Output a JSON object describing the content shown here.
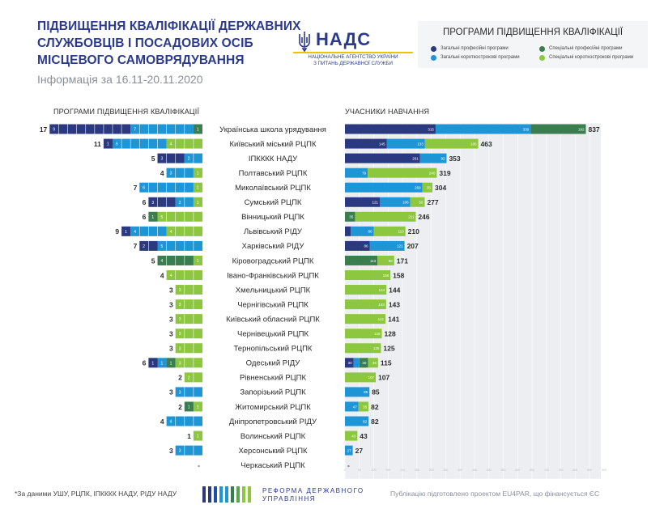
{
  "header": {
    "title_lines": [
      "ПІДВИЩЕННЯ КВАЛІФІКАЦІЇ ДЕРЖАВНИХ",
      "СЛУЖБОВЦІВ І ПОСАДОВИХ ОСІБ",
      "МІСЦЕВОГО САМОВРЯДУВАННЯ"
    ],
    "subtitle": "Інформація за 16.11-20.11.2020"
  },
  "logo": {
    "name": "НАДС",
    "line1": "НАЦІОНАЛЬНЕ АГЕНТСТВО УКРАЇНИ",
    "line2": "З ПИТАНЬ ДЕРЖАВНОЇ СЛУЖБИ",
    "icon": "trident-icon"
  },
  "legend": {
    "title": "ПРОГРАМИ ПІДВИЩЕННЯ КВАЛІФІКАЦІЇ",
    "items": [
      {
        "label": "Загальні професійні програми",
        "color": "#2b3a80"
      },
      {
        "label": "Спеціальні професійні програми",
        "color": "#3a7d4f"
      },
      {
        "label": "Загальні короткострокові програми",
        "color": "#1e96d6"
      },
      {
        "label": "Спеціальні короткострокові програми",
        "color": "#8dc63f"
      }
    ]
  },
  "colors": {
    "general_prof": "#2b3a80",
    "general_short": "#1e96d6",
    "special_prof": "#3a7d4f",
    "special_short": "#8dc63f",
    "track": "#eceef1"
  },
  "sections": {
    "left": "ПРОГРАМИ ПІДВИЩЕННЯ КВАЛІФІКАЦІЇ",
    "right": "УЧАСНИКИ НАВЧАННЯ"
  },
  "chart_data": {
    "type": "bar",
    "series_order": [
      "Загальні професійні програми",
      "Загальні короткострокові програми",
      "Спеціальні професійні програми",
      "Спеціальні короткострокові програми"
    ],
    "categories": [
      "Українська школа урядування",
      "Київський міський РЦПК",
      "ІПКККК НАДУ",
      "Полтавський РЦПК",
      "Миколаївський РЦПК",
      "Сумський РЦПК",
      "Вінницький РЦПК",
      "Львівський РІДУ",
      "Харківський РІДУ",
      "Кіровоградський РЦПК",
      "Івано-Франківський РЦПК",
      "Хмельницький РЦПК",
      "Чернігівський РЦПК",
      "Київський обласний РЦПК",
      "Чернівецький РЦПК",
      "Тернопільський РЦПК",
      "Одеський РІДУ",
      "Рівненський РЦПК",
      "Запорізький РЦПК",
      "Житомирський РЦПК",
      "Дніпропетровський РІДУ",
      "Волинський РЦПК",
      "Херсонський РЦПК",
      "Черкаський РЦПК"
    ],
    "programs": {
      "totals": [
        "17",
        "11",
        "5",
        "4",
        "7",
        "6",
        "6",
        "9",
        "7",
        "5",
        "4",
        "3",
        "3",
        "3",
        "3",
        "3",
        "6",
        "2",
        "3",
        "2",
        "4",
        "1",
        "3",
        "-"
      ],
      "segments": [
        [
          [
            0,
            9
          ],
          [
            1,
            7
          ],
          [
            2,
            1
          ]
        ],
        [
          [
            0,
            1
          ],
          [
            1,
            6
          ],
          [
            3,
            4
          ]
        ],
        [
          [
            0,
            3
          ],
          [
            1,
            2
          ]
        ],
        [
          [
            1,
            3
          ],
          [
            3,
            1
          ]
        ],
        [
          [
            1,
            6
          ],
          [
            3,
            1
          ]
        ],
        [
          [
            0,
            3
          ],
          [
            1,
            2
          ],
          [
            3,
            1
          ]
        ],
        [
          [
            2,
            1
          ],
          [
            3,
            5
          ]
        ],
        [
          [
            0,
            1
          ],
          [
            1,
            4
          ],
          [
            3,
            4
          ]
        ],
        [
          [
            0,
            2
          ],
          [
            1,
            5
          ]
        ],
        [
          [
            2,
            4
          ],
          [
            3,
            1
          ]
        ],
        [
          [
            3,
            4
          ]
        ],
        [
          [
            3,
            3
          ]
        ],
        [
          [
            3,
            3
          ]
        ],
        [
          [
            3,
            3
          ]
        ],
        [
          [
            3,
            3
          ]
        ],
        [
          [
            3,
            3
          ]
        ],
        [
          [
            0,
            1
          ],
          [
            1,
            1
          ],
          [
            2,
            1
          ],
          [
            3,
            3
          ]
        ],
        [
          [
            3,
            2
          ]
        ],
        [
          [
            1,
            3
          ]
        ],
        [
          [
            2,
            1
          ],
          [
            3,
            1
          ]
        ],
        [
          [
            1,
            4
          ]
        ],
        [
          [
            3,
            1
          ]
        ],
        [
          [
            1,
            3
          ]
        ],
        []
      ]
    },
    "participants": {
      "totals": [
        "837",
        "463",
        "353",
        "319",
        "304",
        "277",
        "246",
        "210",
        "207",
        "171",
        "158",
        "144",
        "143",
        "141",
        "128",
        "125",
        "115",
        "107",
        "85",
        "82",
        "82",
        "43",
        "27",
        "-"
      ],
      "segments": [
        [
          [
            0,
            315
          ],
          [
            1,
            330
          ],
          [
            2,
            192
          ]
        ],
        [
          [
            0,
            145
          ],
          [
            1,
            133
          ],
          [
            3,
            185
          ]
        ],
        [
          [
            0,
            261
          ],
          [
            1,
            92
          ]
        ],
        [
          [
            1,
            79
          ],
          [
            3,
            240
          ]
        ],
        [
          [
            1,
            269
          ],
          [
            3,
            35
          ]
        ],
        [
          [
            0,
            121
          ],
          [
            1,
            106
          ],
          [
            3,
            50
          ]
        ],
        [
          [
            2,
            35
          ],
          [
            3,
            211
          ]
        ],
        [
          [
            0,
            20
          ],
          [
            1,
            80
          ],
          [
            3,
            110
          ]
        ],
        [
          [
            0,
            86
          ],
          [
            1,
            121
          ]
        ],
        [
          [
            2,
            113
          ],
          [
            3,
            58
          ]
        ],
        [
          [
            3,
            158
          ]
        ],
        [
          [
            3,
            144
          ]
        ],
        [
          [
            3,
            143
          ]
        ],
        [
          [
            3,
            141
          ]
        ],
        [
          [
            3,
            128
          ]
        ],
        [
          [
            3,
            125
          ]
        ],
        [
          [
            0,
            30
          ],
          [
            1,
            20
          ],
          [
            2,
            30
          ],
          [
            3,
            35
          ]
        ],
        [
          [
            3,
            107
          ]
        ],
        [
          [
            1,
            85
          ]
        ],
        [
          [
            1,
            47
          ],
          [
            3,
            35
          ]
        ],
        [
          [
            1,
            82
          ]
        ],
        [
          [
            3,
            43
          ]
        ],
        [
          [
            1,
            27
          ]
        ],
        []
      ],
      "xlim": [
        0,
        900
      ]
    }
  },
  "footer": {
    "note": "*За даними УШУ, РЦПК, ІПКККК НАДУ, РІДУ НАДУ",
    "reform_line1": "РЕФОРМА ДЕРЖАВНОГО",
    "reform_line2": "УПРАВЛІННЯ",
    "credit": "Публікацію підготовлено проектом EU4PAR, що фінансується ЄС"
  }
}
